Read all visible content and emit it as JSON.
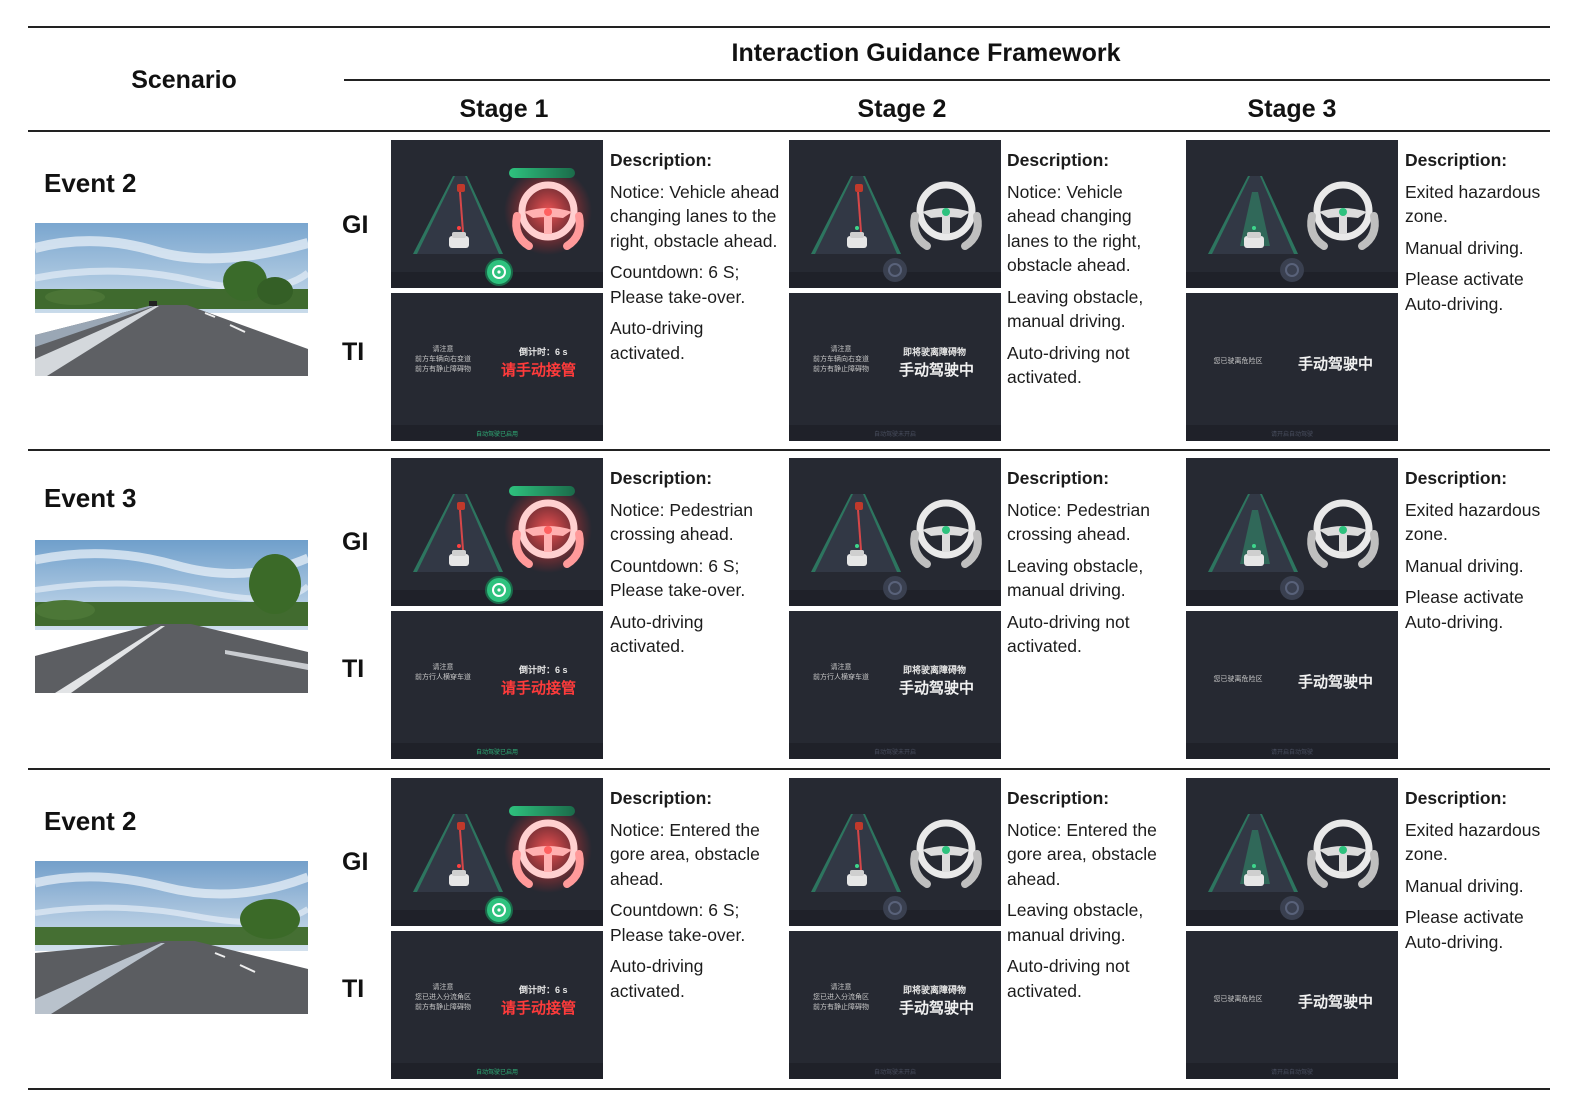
{
  "header": {
    "scenario": "Scenario",
    "framework": "Interaction Guidance Framework",
    "stages": [
      "Stage 1",
      "Stage 2",
      "Stage 3"
    ]
  },
  "row_labels": {
    "gi": "GI",
    "ti": "TI"
  },
  "events": [
    {
      "title": "Event 2",
      "stages": [
        {
          "desc_title": "Description:",
          "paras": [
            "Notice: Vehicle ahead changing lanes to the right, obstacle ahead.",
            "Countdown: 6 S; Please take-over.",
            "Auto-driving activated."
          ],
          "ti_left": [
            "请注意",
            "前方车辆向右变道",
            "前方有静止障碍物"
          ],
          "ti_count": "倒计时：6 s",
          "ti_main": "请手动接管",
          "ti_foot": "自动驾驶已启用"
        },
        {
          "desc_title": "Description:",
          "paras": [
            "Notice: Vehicle ahead changing lanes to the right, obstacle ahead.",
            "Leaving obstacle, manual driving.",
            "Auto-driving not activated."
          ],
          "ti_left": [
            "请注意",
            "前方车辆向右变道",
            "前方有静止障碍物"
          ],
          "ti_count": "即将驶离障碍物",
          "ti_main": "手动驾驶中",
          "ti_foot": "自动驾驶未开启"
        },
        {
          "desc_title": "Description:",
          "paras": [
            "Exited hazardous zone.",
            "Manual driving.",
            "Please activate Auto-driving."
          ],
          "ti_left": [
            "您已驶离危险区"
          ],
          "ti_count": "",
          "ti_main": "手动驾驶中",
          "ti_foot": "请开启自动驾驶"
        }
      ]
    },
    {
      "title": "Event 3",
      "stages": [
        {
          "desc_title": "Description:",
          "paras": [
            "Notice: Pedestrian crossing ahead.",
            "Countdown: 6 S; Please take-over.",
            "Auto-driving activated."
          ],
          "ti_left": [
            "请注意",
            "前方行人横穿车道"
          ],
          "ti_count": "倒计时：6 s",
          "ti_main": "请手动接管",
          "ti_foot": "自动驾驶已启用"
        },
        {
          "desc_title": "Description:",
          "paras": [
            "Notice: Pedestrian crossing ahead.",
            "Leaving obstacle, manual driving.",
            "Auto-driving not activated."
          ],
          "ti_left": [
            "请注意",
            "前方行人横穿车道"
          ],
          "ti_count": "即将驶离障碍物",
          "ti_main": "手动驾驶中",
          "ti_foot": "自动驾驶未开启"
        },
        {
          "desc_title": "Description:",
          "paras": [
            "Exited hazardous zone.",
            "Manual driving.",
            "Please activate Auto-driving."
          ],
          "ti_left": [
            "您已驶离危险区"
          ],
          "ti_count": "",
          "ti_main": "手动驾驶中",
          "ti_foot": "请开启自动驾驶"
        }
      ]
    },
    {
      "title": "Event 2",
      "stages": [
        {
          "desc_title": "Description:",
          "paras": [
            "Notice: Entered the gore area, obstacle ahead.",
            "Countdown: 6 S; Please take-over.",
            "Auto-driving activated."
          ],
          "ti_left": [
            "请注意",
            "您已进入分流角区",
            "前方有静止障碍物"
          ],
          "ti_count": "倒计时：6 s",
          "ti_main": "请手动接管",
          "ti_foot": "自动驾驶已启用"
        },
        {
          "desc_title": "Description:",
          "paras": [
            "Notice: Entered the gore area, obstacle ahead.",
            "Leaving obstacle, manual driving.",
            "Auto-driving not activated."
          ],
          "ti_left": [
            "请注意",
            "您已进入分流角区",
            "前方有静止障碍物"
          ],
          "ti_count": "即将驶离障碍物",
          "ti_main": "手动驾驶中",
          "ti_foot": "自动驾驶未开启"
        },
        {
          "desc_title": "Description:",
          "paras": [
            "Exited hazardous zone.",
            "Manual driving.",
            "Please activate Auto-driving."
          ],
          "ti_left": [
            "您已驶离危险区"
          ],
          "ti_count": "",
          "ti_main": "手动驾驶中",
          "ti_foot": "请开启自动驾驶"
        }
      ]
    }
  ],
  "colors": {
    "panel_bg": "#262932",
    "accent_green": "#2ec27e",
    "alert_red": "#ff3b3b",
    "rule": "#222222"
  }
}
